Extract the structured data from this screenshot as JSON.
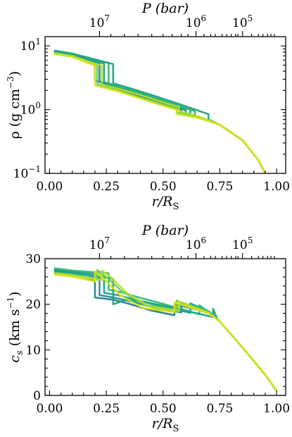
{
  "chart_data": [
    {
      "type": "line",
      "panel": "top",
      "xlabel": "r/R",
      "xlabel_sub": "S",
      "ylabel": "ρ (g cm",
      "ylabel_exp": "−3",
      "ylabel_close": ")",
      "xlim": [
        -0.02,
        1.04
      ],
      "ylim": [
        0.1,
        14
      ],
      "yscale": "log",
      "x_ticks": [
        0.0,
        0.25,
        0.5,
        0.75,
        1.0
      ],
      "x_tick_labels": [
        "0.00",
        "0.25",
        "0.50",
        "0.75",
        "1.00"
      ],
      "y_ticks": [
        0.1,
        1,
        10
      ],
      "y_tick_labels": [
        {
          "base": "10",
          "exp": "−1"
        },
        {
          "base": "10",
          "exp": "0"
        },
        {
          "base": "10",
          "exp": "1"
        }
      ],
      "top_axis": {
        "label": "P (bar)",
        "ticks": [
          {
            "r": 0.22,
            "base": "10",
            "exp": "7"
          },
          {
            "r": 0.645,
            "base": "10",
            "exp": "6"
          },
          {
            "r": 0.85,
            "base": "10",
            "exp": "5"
          }
        ]
      },
      "colormap": "viridis",
      "series": [
        {
          "color": "#277f8e",
          "x": [
            0.02,
            0.1,
            0.2,
            0.2,
            0.3,
            0.4,
            0.5,
            0.58,
            0.58,
            0.65,
            0.75,
            0.85,
            0.92,
            0.95
          ],
          "y": [
            8.1,
            7.2,
            5.2,
            2.9,
            2.1,
            1.6,
            1.25,
            1.0,
            0.93,
            0.78,
            0.58,
            0.33,
            0.16,
            0.1
          ]
        },
        {
          "color": "#21918c",
          "x": [
            0.02,
            0.1,
            0.22,
            0.22,
            0.3,
            0.4,
            0.5,
            0.6,
            0.6,
            0.65,
            0.75,
            0.85,
            0.92,
            0.95
          ],
          "y": [
            8.2,
            7.3,
            5.3,
            2.8,
            2.2,
            1.7,
            1.3,
            0.98,
            0.9,
            0.78,
            0.58,
            0.33,
            0.16,
            0.1
          ]
        },
        {
          "color": "#1fa187",
          "x": [
            0.02,
            0.1,
            0.24,
            0.24,
            0.3,
            0.4,
            0.5,
            0.62,
            0.62,
            0.68,
            0.75,
            0.85,
            0.92,
            0.95
          ],
          "y": [
            8.3,
            7.4,
            5.3,
            2.7,
            2.3,
            1.8,
            1.35,
            1.0,
            0.8,
            0.72,
            0.58,
            0.33,
            0.16,
            0.1
          ]
        },
        {
          "color": "#35b779",
          "x": [
            0.02,
            0.1,
            0.26,
            0.26,
            0.3,
            0.4,
            0.5,
            0.64,
            0.64,
            0.7,
            0.75,
            0.85,
            0.92,
            0.95
          ],
          "y": [
            8.4,
            7.5,
            5.4,
            2.6,
            2.35,
            1.85,
            1.4,
            0.95,
            0.78,
            0.68,
            0.58,
            0.33,
            0.16,
            0.1
          ]
        },
        {
          "color": "#20a386",
          "x": [
            0.02,
            0.1,
            0.28,
            0.28,
            0.35,
            0.45,
            0.55,
            0.7,
            0.7,
            0.72,
            0.75,
            0.85,
            0.92,
            0.95
          ],
          "y": [
            8.5,
            7.6,
            5.2,
            2.6,
            2.2,
            1.7,
            1.3,
            0.85,
            0.7,
            0.65,
            0.58,
            0.33,
            0.16,
            0.1
          ]
        },
        {
          "color": "#6ece58",
          "x": [
            0.02,
            0.1,
            0.21,
            0.21,
            0.3,
            0.4,
            0.5,
            0.56,
            0.56,
            0.65,
            0.75,
            0.85,
            0.92,
            0.95
          ],
          "y": [
            7.8,
            7.0,
            5.1,
            2.5,
            2.0,
            1.55,
            1.2,
            1.05,
            0.9,
            0.78,
            0.58,
            0.33,
            0.16,
            0.1
          ]
        },
        {
          "color": "#b5de2b",
          "x": [
            0.02,
            0.1,
            0.23,
            0.23,
            0.3,
            0.4,
            0.5,
            0.57,
            0.57,
            0.65,
            0.75,
            0.85,
            0.92,
            0.95
          ],
          "y": [
            7.6,
            6.8,
            4.9,
            2.5,
            2.15,
            1.7,
            1.3,
            1.1,
            0.95,
            0.8,
            0.58,
            0.33,
            0.16,
            0.1
          ]
        },
        {
          "color": "#d8e219",
          "x": [
            0.02,
            0.1,
            0.2,
            0.2,
            0.3,
            0.4,
            0.5,
            0.56,
            0.56,
            0.65,
            0.75,
            0.85,
            0.92,
            0.95
          ],
          "y": [
            7.5,
            6.7,
            4.9,
            2.4,
            1.95,
            1.5,
            1.15,
            1.0,
            0.85,
            0.75,
            0.58,
            0.33,
            0.16,
            0.1
          ]
        }
      ]
    },
    {
      "type": "line",
      "panel": "bottom",
      "xlabel": "r/R",
      "xlabel_sub": "S",
      "ylabel": "c",
      "ylabel_sub": "s",
      "ylabel_units": " (km s",
      "ylabel_exp": "−1",
      "ylabel_close": ")",
      "xlim": [
        -0.02,
        1.04
      ],
      "ylim": [
        0,
        30
      ],
      "yscale": "linear",
      "x_ticks": [
        0.0,
        0.25,
        0.5,
        0.75,
        1.0
      ],
      "x_tick_labels": [
        "0.00",
        "0.25",
        "0.50",
        "0.75",
        "1.00"
      ],
      "y_ticks": [
        0,
        10,
        20,
        30
      ],
      "y_tick_labels": [
        "0",
        "10",
        "20",
        "30"
      ],
      "top_axis": {
        "label": "P (bar)",
        "ticks": [
          {
            "r": 0.22,
            "base": "10",
            "exp": "7"
          },
          {
            "r": 0.645,
            "base": "10",
            "exp": "6"
          },
          {
            "r": 0.85,
            "base": "10",
            "exp": "5"
          }
        ]
      },
      "colormap": "viridis",
      "series": [
        {
          "color": "#277f8e",
          "x": [
            0.02,
            0.1,
            0.2,
            0.2,
            0.28,
            0.35,
            0.45,
            0.55,
            0.55,
            0.7,
            0.75,
            0.85,
            0.95,
            1.0
          ],
          "y": [
            27.2,
            26.6,
            25.1,
            21.5,
            21.0,
            20.1,
            18.6,
            17.6,
            20.0,
            18.2,
            16.2,
            10.5,
            4.5,
            1.0
          ]
        },
        {
          "color": "#21918c",
          "x": [
            0.02,
            0.1,
            0.22,
            0.22,
            0.28,
            0.36,
            0.46,
            0.58,
            0.58,
            0.7,
            0.75,
            0.85,
            0.95,
            1.0
          ],
          "y": [
            27.5,
            27.0,
            25.8,
            22.0,
            21.5,
            20.6,
            19.3,
            18.2,
            20.3,
            18.4,
            16.2,
            10.5,
            4.5,
            1.0
          ]
        },
        {
          "color": "#1fa187",
          "x": [
            0.02,
            0.1,
            0.24,
            0.24,
            0.3,
            0.38,
            0.48,
            0.62,
            0.62,
            0.7,
            0.75,
            0.85,
            0.95,
            1.0
          ],
          "y": [
            27.7,
            27.2,
            26.3,
            22.5,
            22.0,
            21.0,
            19.7,
            18.1,
            20.2,
            18.5,
            16.2,
            10.5,
            4.5,
            1.0
          ]
        },
        {
          "color": "#35b779",
          "x": [
            0.02,
            0.1,
            0.26,
            0.26,
            0.32,
            0.4,
            0.5,
            0.66,
            0.66,
            0.72,
            0.75,
            0.85,
            0.95,
            1.0
          ],
          "y": [
            27.9,
            27.4,
            26.8,
            23.2,
            22.6,
            21.4,
            20.1,
            17.8,
            19.8,
            17.6,
            16.2,
            10.5,
            4.5,
            1.0
          ]
        },
        {
          "color": "#20a386",
          "x": [
            0.02,
            0.1,
            0.28,
            0.28,
            0.34,
            0.42,
            0.52,
            0.72,
            0.72,
            0.74,
            0.75,
            0.85,
            0.95,
            1.0
          ],
          "y": [
            27.3,
            26.8,
            25.6,
            20.0,
            21.0,
            20.5,
            19.5,
            17.2,
            19.0,
            16.6,
            16.2,
            10.5,
            4.5,
            1.0
          ]
        },
        {
          "color": "#6ece58",
          "x": [
            0.02,
            0.1,
            0.21,
            0.21,
            0.25,
            0.32,
            0.42,
            0.56,
            0.56,
            0.7,
            0.75,
            0.85,
            0.95,
            1.0
          ],
          "y": [
            26.9,
            26.5,
            25.4,
            27.5,
            26.0,
            22.8,
            19.9,
            18.7,
            20.8,
            18.3,
            16.2,
            10.5,
            4.5,
            1.0
          ]
        },
        {
          "color": "#b5de2b",
          "x": [
            0.02,
            0.1,
            0.23,
            0.23,
            0.27,
            0.34,
            0.44,
            0.57,
            0.57,
            0.7,
            0.75,
            0.85,
            0.95,
            1.0
          ],
          "y": [
            26.7,
            26.3,
            25.3,
            27.4,
            25.9,
            22.5,
            19.5,
            18.5,
            20.6,
            18.1,
            16.2,
            10.5,
            4.5,
            1.0
          ]
        },
        {
          "color": "#d8e219",
          "x": [
            0.02,
            0.1,
            0.2,
            0.2,
            0.24,
            0.31,
            0.41,
            0.55,
            0.55,
            0.7,
            0.75,
            0.85,
            0.95,
            1.0
          ],
          "y": [
            26.5,
            26.1,
            25.0,
            27.2,
            25.6,
            22.0,
            19.2,
            18.3,
            20.4,
            18.0,
            16.2,
            10.5,
            4.5,
            1.0
          ]
        }
      ]
    }
  ]
}
